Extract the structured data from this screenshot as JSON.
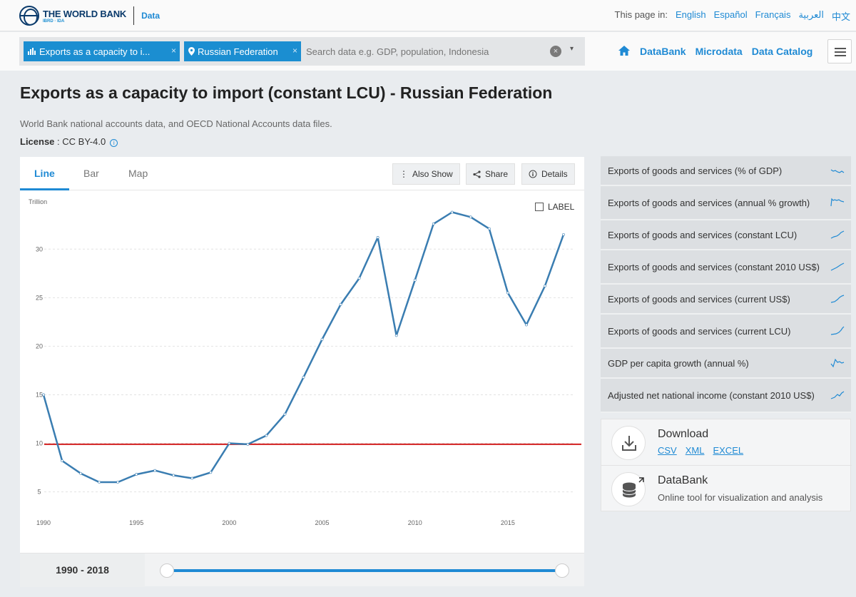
{
  "header": {
    "logo_main": "THE WORLD BANK",
    "logo_sub": "IBRD · IDA",
    "section": "Data",
    "lang_label": "This page in:",
    "languages": [
      "English",
      "Español",
      "Français",
      "العربية",
      "中文"
    ]
  },
  "search": {
    "chip_indicator": "Exports as a capacity to i...",
    "chip_country": "Russian Federation",
    "placeholder": "Search data e.g. GDP, population, Indonesia",
    "clear": "×",
    "dropdown": "▾",
    "chip_close": "×"
  },
  "nav": {
    "databank": "DataBank",
    "microdata": "Microdata",
    "catalog": "Data Catalog"
  },
  "page": {
    "title": "Exports as a capacity to import (constant LCU) - Russian Federation",
    "source": "World Bank national accounts data, and OECD National Accounts data files.",
    "license_label": "License",
    "license_value": ": CC BY-4.0",
    "info": "i"
  },
  "tabs": [
    "Line",
    "Bar",
    "Map"
  ],
  "tools": {
    "also_show": "Also Show",
    "share": "Share",
    "details": "Details"
  },
  "label_toggle": "LABEL",
  "range": "1990 - 2018",
  "chart_data": {
    "type": "line",
    "ylabel": "Trillion",
    "ylim": [
      3.5,
      34.5
    ],
    "yticks": [
      5,
      10,
      15,
      20,
      25,
      30
    ],
    "xlim": [
      1989.5,
      2018.5
    ],
    "xticks": [
      1990,
      1995,
      2000,
      2005,
      2010,
      2015
    ],
    "x": [
      1990,
      1991,
      1992,
      1993,
      1994,
      1995,
      1996,
      1997,
      1998,
      1999,
      2000,
      2001,
      2002,
      2003,
      2004,
      2005,
      2006,
      2007,
      2008,
      2009,
      2010,
      2011,
      2012,
      2013,
      2014,
      2015,
      2016,
      2017,
      2018
    ],
    "series": [
      {
        "values": [
          15.0,
          8.2,
          6.9,
          6.0,
          6.0,
          6.8,
          7.2,
          6.7,
          6.4,
          7.0,
          10.0,
          9.9,
          10.8,
          13.0,
          16.8,
          20.7,
          24.3,
          27.0,
          31.2,
          21.1,
          26.8,
          32.6,
          33.8,
          33.3,
          32.1,
          25.5,
          22.2,
          26.2,
          31.5
        ],
        "color": "#3a7db1"
      }
    ],
    "reference_line": {
      "value": 9.9,
      "color": "#d21f1f"
    },
    "grid": true
  },
  "related": [
    {
      "label": "Exports of goods and services (% of GDP)"
    },
    {
      "label": "Exports of goods and services (annual % growth)"
    },
    {
      "label": "Exports of goods and services (constant LCU)"
    },
    {
      "label": "Exports of goods and services (constant 2010 US$)"
    },
    {
      "label": "Exports of goods and services (current US$)"
    },
    {
      "label": "Exports of goods and services (current LCU)"
    },
    {
      "label": "GDP per capita growth (annual %)"
    },
    {
      "label": "Adjusted net national income (constant 2010 US$)"
    }
  ],
  "download": {
    "title": "Download",
    "csv": "CSV",
    "xml": "XML",
    "excel": "EXCEL"
  },
  "databank": {
    "title": "DataBank",
    "subtitle": "Online tool for visualization and analysis"
  },
  "colors": {
    "accent": "#1f8ad4",
    "chip": "#1b8ed1",
    "line": "#3a7db1",
    "threshold": "#d21f1f"
  }
}
